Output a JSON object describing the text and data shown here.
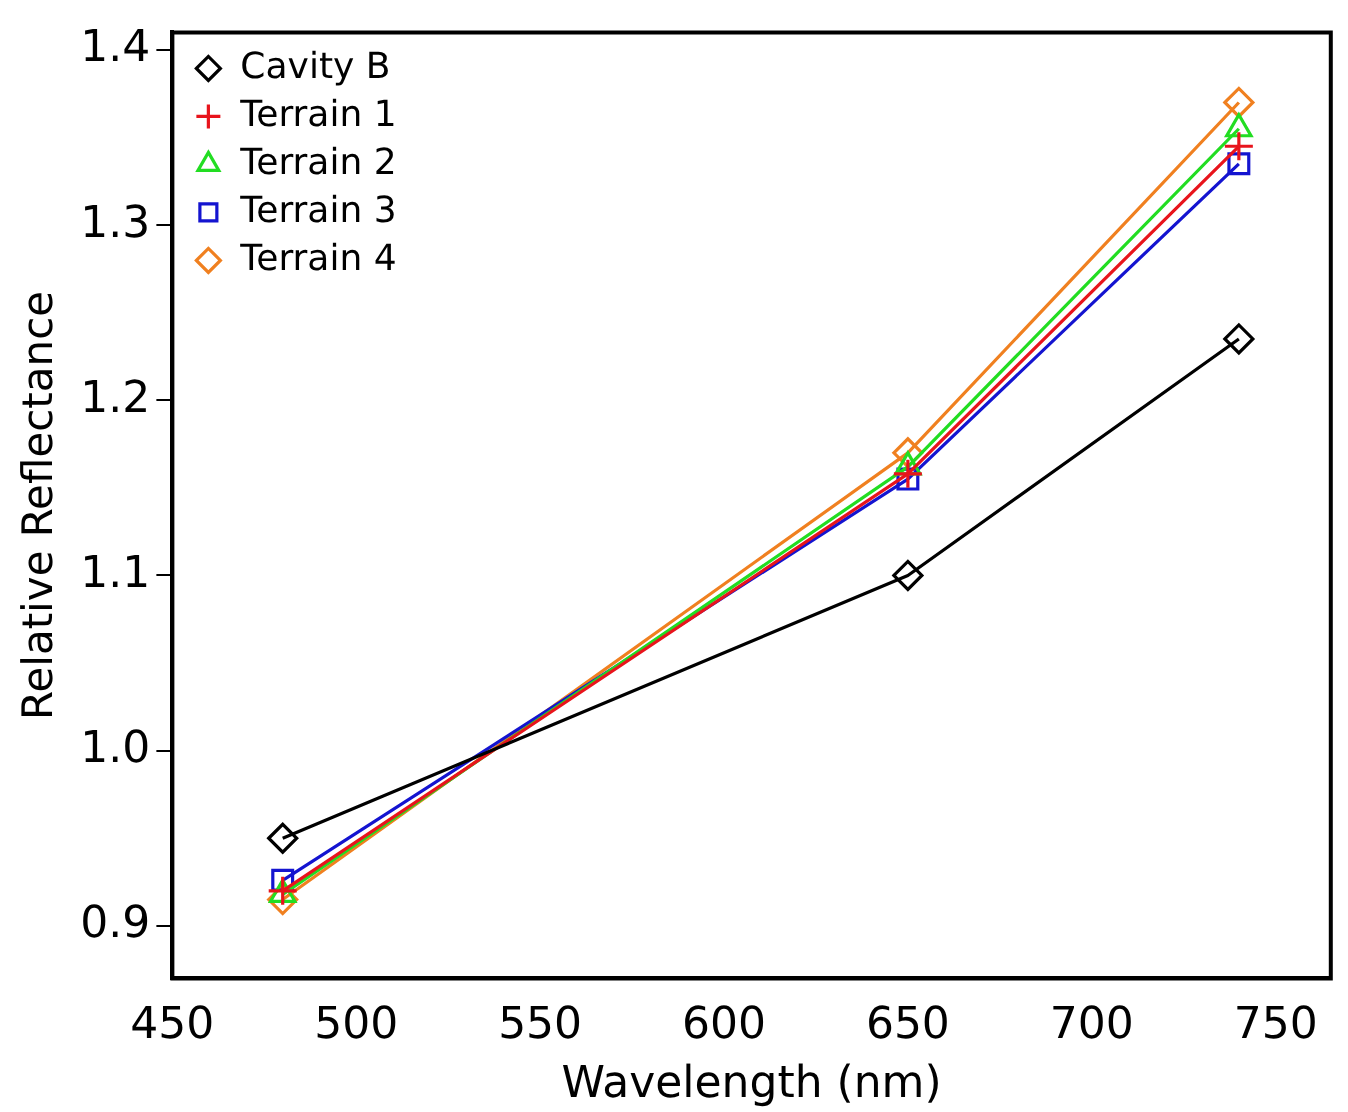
{
  "chart_data": {
    "type": "line",
    "xlabel": "Wavelength (nm)",
    "ylabel": "Relative Reflectance",
    "xlim": [
      450,
      765
    ],
    "xticks": [
      450,
      500,
      550,
      600,
      650,
      700,
      750
    ],
    "ylim": [
      0.87,
      1.41
    ],
    "yticks": [
      0.9,
      {
        "value": 1,
        "label": "1.0"
      },
      1.1,
      1.2,
      1.3,
      1.4
    ],
    "grid": false,
    "legend": "top left",
    "line_style": "solid",
    "series": [
      {
        "name": "Cavity B",
        "color": "#000000",
        "marker": "diamond",
        "x": [
          480,
          650,
          740
        ],
        "values": [
          0.95,
          1.1,
          1.235
        ]
      },
      {
        "name": "Terrain 1",
        "color": "#e8141c",
        "marker": "cross",
        "x": [
          480,
          650,
          740
        ],
        "values": [
          0.92,
          1.158,
          1.345
        ]
      },
      {
        "name": "Terrain 2",
        "color": "#22dd22",
        "marker": "triangle",
        "x": [
          480,
          650,
          740
        ],
        "values": [
          0.918,
          1.162,
          1.355
        ]
      },
      {
        "name": "Terrain 3",
        "color": "#1414d0",
        "marker": "square",
        "x": [
          480,
          650,
          740
        ],
        "values": [
          0.926,
          1.155,
          1.335
        ]
      },
      {
        "name": "Terrain 4",
        "color": "#f08020",
        "marker": "diamond",
        "x": [
          480,
          650,
          740
        ],
        "values": [
          0.915,
          1.17,
          1.37
        ]
      }
    ]
  }
}
